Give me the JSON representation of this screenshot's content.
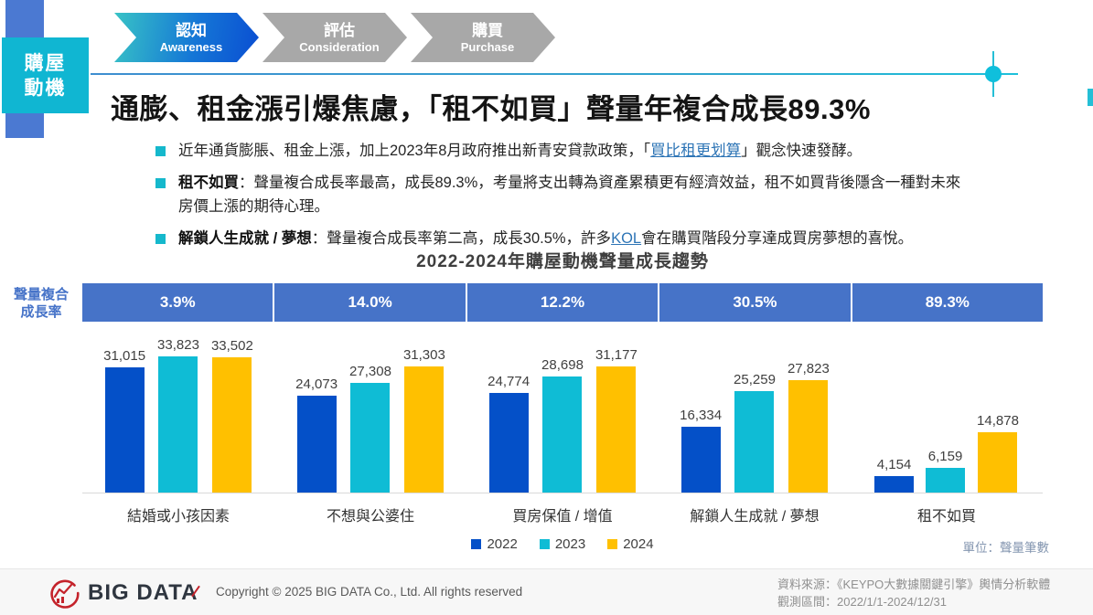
{
  "sidebar": {
    "tag_lines": [
      "購屋",
      "動機"
    ]
  },
  "funnel": {
    "steps": [
      {
        "title": "認知",
        "subtitle": "Awareness",
        "active": true
      },
      {
        "title": "評估",
        "subtitle": "Consideration",
        "active": false
      },
      {
        "title": "購買",
        "subtitle": "Purchase",
        "active": false
      }
    ]
  },
  "header": {
    "title": "通膨、租金漲引爆焦慮，「租不如買」聲量年複合成長89.3%"
  },
  "bullets": {
    "b1": {
      "pre": "近年通貨膨脹、租金上漲，加上2023年8月政府推出新青安貸款政策，「",
      "link": "買比租更划算",
      "post": "」觀念快速發酵。"
    },
    "b2": {
      "bold": "租不如買",
      "post": "：聲量複合成長率最高，成長89.3%，考量將支出轉為資產累積更有經濟效益，租不如買背後隱含一種對未來房價上漲的期待心理。"
    },
    "b3": {
      "bold": "解鎖人生成就 / 夢想",
      "mid": "：聲量複合成長率第二高，成長30.5%，許多",
      "link": "KOL",
      "post": "會在購買階段分享達成買房夢想的喜悅。"
    }
  },
  "chart_data": {
    "type": "bar",
    "title": "2022-2024年購屋動機聲量成長趨勢",
    "cagr_row_label_lines": [
      "聲量複合",
      "成長率"
    ],
    "cagr_values": [
      "3.9%",
      "14.0%",
      "12.2%",
      "30.5%",
      "89.3%"
    ],
    "categories": [
      "結婚或小孩因素",
      "不想與公婆住",
      "買房保值 / 增值",
      "解鎖人生成就 / 夢想",
      "租不如買"
    ],
    "series": [
      {
        "name": "2022",
        "color": "#0450C8",
        "values": [
          31015,
          24073,
          24774,
          16334,
          4154
        ]
      },
      {
        "name": "2023",
        "color": "#0FBCD5",
        "values": [
          33823,
          27308,
          28698,
          25259,
          6159
        ]
      },
      {
        "name": "2024",
        "color": "#FFC000",
        "values": [
          33502,
          31303,
          31177,
          27823,
          14878
        ]
      }
    ],
    "ylim": [
      0,
      34000
    ],
    "grid": false,
    "legend_position": "bottom",
    "unit_note": "單位：聲量筆數",
    "band_color": "#4673C8"
  },
  "footer": {
    "logo_text": "BIG DATA",
    "copyright": "Copyright © 2025 BIG DATA Co., Ltd. All rights reserved",
    "source_line1": "資料來源：《KEYPO大數據關鍵引擎》輿情分析軟體",
    "source_line2": "觀測區間：2022/1/1-2024/12/31"
  },
  "colors": {
    "accent_cyan": "#10B6D2",
    "accent_blue": "#4B79D2",
    "band_blue": "#4673C8",
    "bar_2022": "#0450C8",
    "bar_2023": "#0FBCD5",
    "bar_2024": "#FFC000",
    "link_blue": "#2E75B6",
    "logo_red": "#C4232B"
  }
}
